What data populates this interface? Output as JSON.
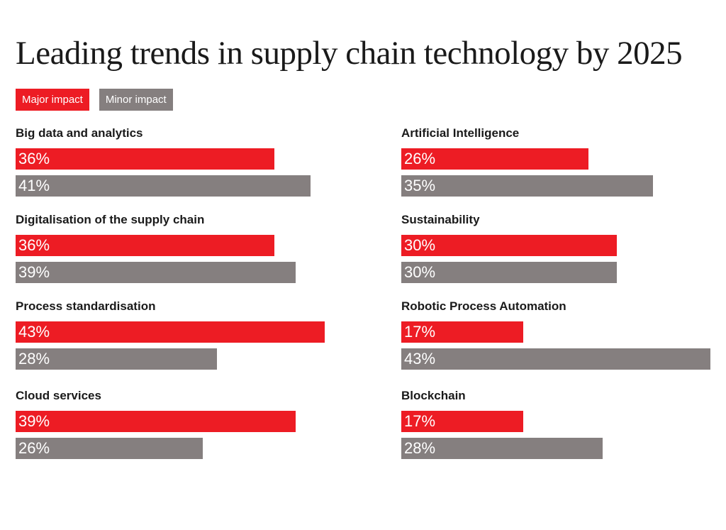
{
  "chart_data": {
    "type": "bar",
    "title": "Leading trends in supply chain technology by 2025",
    "colors": {
      "major": "#ed1c24",
      "minor": "#857f7f"
    },
    "series": [
      {
        "key": "major",
        "name": "Major impact"
      },
      {
        "key": "minor",
        "name": "Minor impact"
      }
    ],
    "xlim": [
      0,
      43
    ],
    "columns": [
      {
        "column": "left",
        "categories": [
          {
            "label": "Big data and analytics",
            "major": 36,
            "minor": 41,
            "major_label": "36%",
            "minor_label": "41%"
          },
          {
            "label": "Digitalisation of the supply chain",
            "major": 36,
            "minor": 39,
            "major_label": "36%",
            "minor_label": "39%"
          },
          {
            "label": "Process standardisation",
            "major": 43,
            "minor": 28,
            "major_label": "43%",
            "minor_label": "28%"
          },
          {
            "label": "Cloud services",
            "major": 39,
            "minor": 26,
            "major_label": "39%",
            "minor_label": "26%"
          }
        ]
      },
      {
        "column": "right",
        "categories": [
          {
            "label": "Artificial Intelligence",
            "major": 26,
            "minor": 35,
            "major_label": "26%",
            "minor_label": "35%"
          },
          {
            "label": "Sustainability",
            "major": 30,
            "minor": 30,
            "major_label": "30%",
            "minor_label": "30%"
          },
          {
            "label": "Robotic Process Automation",
            "major": 17,
            "minor": 43,
            "major_label": "17%",
            "minor_label": "43%"
          },
          {
            "label": "Blockchain",
            "major": 17,
            "minor": 28,
            "major_label": "17%",
            "minor_label": "28%"
          }
        ]
      }
    ]
  }
}
